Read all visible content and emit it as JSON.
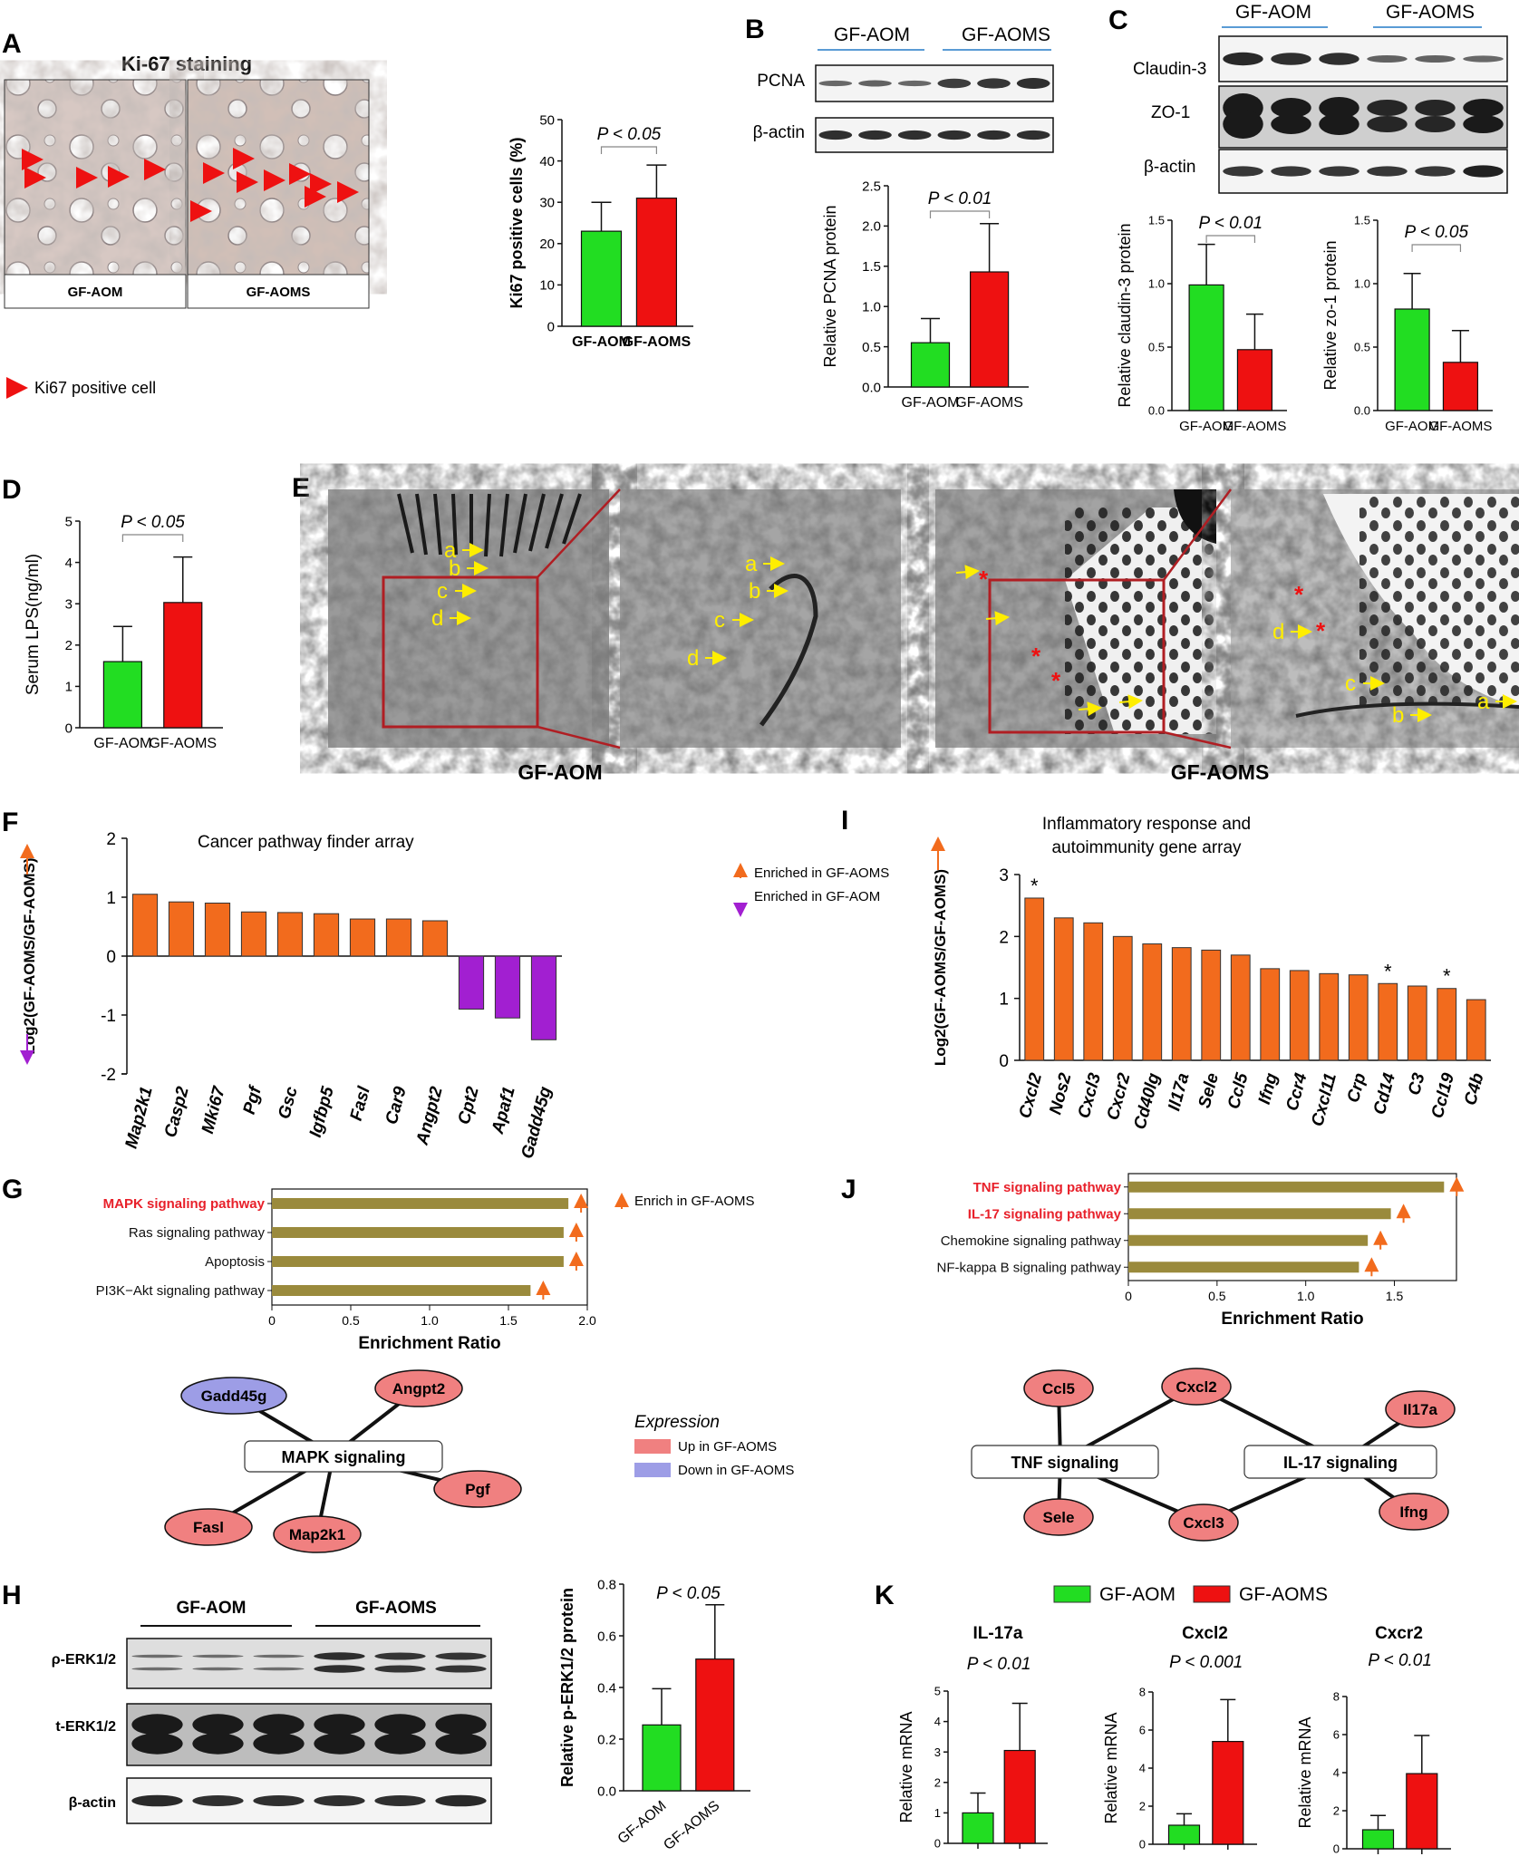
{
  "colors": {
    "green": "#22dd22",
    "red": "#ee1111",
    "orange": "#f26b1d",
    "purple": "#a21fd1",
    "olive": "#9a8a3c",
    "pathway_red": "#e8202a",
    "node_red": "#f08080",
    "node_blue": "#9d9de6",
    "blue_line": "#5a9bd5"
  },
  "panels": {
    "A": {
      "label": "A",
      "title": "Ki-67 staining",
      "left_caption": "GF-AOM",
      "right_caption": "GF-AOMS",
      "legend": "Ki67 positive cell",
      "chart_data": {
        "type": "bar",
        "categories": [
          "GF-AOM",
          "GF-AOMS"
        ],
        "values": [
          23,
          31
        ],
        "errors": [
          7,
          8
        ],
        "ylabel": "Ki67 positive cells (%)",
        "ylim": [
          0,
          50
        ],
        "yticks": [
          "0",
          "10",
          "20",
          "30",
          "40",
          "50"
        ],
        "pvalue": "P < 0.05"
      }
    },
    "B": {
      "label": "B",
      "groups": [
        "GF-AOM",
        "GF-AOMS"
      ],
      "rows": [
        "PCNA",
        "β-actin"
      ],
      "chart_data": {
        "type": "bar",
        "categories": [
          "GF-AOM",
          "GF-AOMS"
        ],
        "values": [
          0.55,
          1.43
        ],
        "errors": [
          0.3,
          0.6
        ],
        "ylabel": "Relative PCNA protein",
        "ylim": [
          0,
          2.5
        ],
        "yticks": [
          "0.0",
          "0.5",
          "1.0",
          "1.5",
          "2.0",
          "2.5"
        ],
        "pvalue": "P < 0.01"
      }
    },
    "C": {
      "label": "C",
      "groups": [
        "GF-AOM",
        "GF-AOMS"
      ],
      "rows": [
        "Claudin-3",
        "ZO-1",
        "β-actin"
      ],
      "chart_data": [
        {
          "type": "bar",
          "categories": [
            "GF-AOM",
            "GF-AOMS"
          ],
          "values": [
            0.99,
            0.48
          ],
          "errors": [
            0.32,
            0.28
          ],
          "ylabel": "Relative claudin-3 protein",
          "ylim": [
            0,
            1.5
          ],
          "yticks": [
            "0.0",
            "0.5",
            "1.0",
            "1.5"
          ],
          "pvalue": "P < 0.01"
        },
        {
          "type": "bar",
          "categories": [
            "GF-AOM",
            "GF-AOMS"
          ],
          "values": [
            0.8,
            0.38
          ],
          "errors": [
            0.28,
            0.25
          ],
          "ylabel": "Relative zo-1 protein",
          "ylim": [
            0,
            1.5
          ],
          "yticks": [
            "0.0",
            "0.5",
            "1.0",
            "1.5"
          ],
          "pvalue": "P < 0.05"
        }
      ]
    },
    "D": {
      "label": "D",
      "chart_data": {
        "type": "bar",
        "categories": [
          "GF-AOM",
          "GF-AOMS"
        ],
        "values": [
          1.6,
          3.03
        ],
        "errors": [
          0.85,
          1.1
        ],
        "ylabel": "Serum LPS(ng/ml)",
        "ylim": [
          0,
          5
        ],
        "yticks": [
          "0",
          "1",
          "2",
          "3",
          "4",
          "5"
        ],
        "pvalue": "P < 0.05"
      }
    },
    "E": {
      "label": "E",
      "captions": [
        "GF-AOM",
        "GF-AOMS"
      ],
      "arrow_letters": [
        "a",
        "b",
        "c",
        "d"
      ]
    },
    "F": {
      "label": "F",
      "title": "Cancer pathway finder array",
      "legend_up": "Enriched in GF-AOMS",
      "legend_down": "Enriched in GF-AOM",
      "chart_data": {
        "type": "bar",
        "categories": [
          "Map2k1",
          "Casp2",
          "Mki67",
          "Pgf",
          "Gsc",
          "Igfbp5",
          "Fasl",
          "Car9",
          "Angpt2",
          "Cpt2",
          "Apaf1",
          "Gadd45g"
        ],
        "values": [
          1.05,
          0.92,
          0.9,
          0.75,
          0.74,
          0.72,
          0.63,
          0.63,
          0.6,
          -0.9,
          -1.05,
          -1.42
        ],
        "ylabel": "Log2(GF-AOMS/GF-AOMS)",
        "ylim": [
          -2,
          2
        ],
        "yticks": [
          "2",
          "1",
          "0",
          "-1",
          "-2"
        ]
      }
    },
    "I": {
      "label": "I",
      "title_line1": "Inflammatory response and",
      "title_line2": "autoimmunity gene array",
      "star": "*",
      "chart_data": {
        "type": "bar",
        "categories": [
          "Cxcl2",
          "Nos2",
          "Cxcl3",
          "Cxcr2",
          "Cd40lg",
          "Il17a",
          "Sele",
          "Ccl5",
          "Ifng",
          "Ccr4",
          "Cxcl11",
          "Crp",
          "Cd14",
          "C3",
          "Ccl19",
          "C4b"
        ],
        "values": [
          2.62,
          2.3,
          2.22,
          2.0,
          1.88,
          1.82,
          1.78,
          1.7,
          1.48,
          1.45,
          1.4,
          1.38,
          1.24,
          1.2,
          1.16,
          0.98
        ],
        "starred": [
          true,
          false,
          false,
          false,
          false,
          false,
          false,
          false,
          false,
          false,
          false,
          false,
          true,
          false,
          true,
          false
        ],
        "ylabel": "Log2(GF-AOMS/GF-AOMS)",
        "ylim": [
          0,
          3
        ],
        "yticks": [
          "3",
          "2",
          "1",
          "0"
        ]
      }
    },
    "G": {
      "label": "G",
      "legend": "Enrich in GF-AOMS",
      "chart_data": {
        "type": "bar",
        "categories": [
          "MAPK signaling pathway",
          "Ras signaling pathway",
          "Apoptosis",
          "PI3K−Akt signaling pathway"
        ],
        "values": [
          1.88,
          1.85,
          1.85,
          1.64
        ],
        "highlight": [
          true,
          false,
          false,
          false
        ],
        "xlabel": "Enrichment Ratio",
        "xlim": [
          0,
          2
        ],
        "xticks": [
          "0",
          "0.5",
          "1.0",
          "1.5",
          "2.0"
        ]
      },
      "network": {
        "center": "MAPK signaling",
        "nodes": [
          "Gadd45g",
          "Angpt2",
          "Fasl",
          "Pgf",
          "Map2k1"
        ],
        "expression_title": "Expression",
        "expression_up": "Up in GF-AOMS",
        "expression_down": "Down in GF-AOMS"
      }
    },
    "J": {
      "label": "J",
      "chart_data": {
        "type": "bar",
        "categories": [
          "TNF signaling pathway",
          "IL-17 signaling pathway",
          "Chemokine signaling pathway",
          "NF-kappa B signaling pathway"
        ],
        "values": [
          1.78,
          1.48,
          1.35,
          1.3
        ],
        "highlight": [
          true,
          true,
          false,
          false
        ],
        "xlabel": "Enrichment Ratio",
        "xlim": [
          0,
          1.85
        ],
        "xticks": [
          "0",
          "0.5",
          "1.0",
          "1.5"
        ]
      },
      "network": {
        "hubs": [
          "TNF signaling",
          "IL-17 signaling"
        ],
        "nodes": [
          "Ccl5",
          "Cxcl2",
          "Il17a",
          "Sele",
          "Cxcl3",
          "Ifng"
        ]
      }
    },
    "H": {
      "label": "H",
      "groups": [
        "GF-AOM",
        "GF-AOMS"
      ],
      "rows": [
        "ρ-ERK1/2",
        "t-ERK1/2",
        "β-actin"
      ],
      "chart_data": {
        "type": "bar",
        "categories": [
          "GF-AOM",
          "GF-AOMS"
        ],
        "values": [
          0.255,
          0.51
        ],
        "errors": [
          0.14,
          0.21
        ],
        "ylabel": "Relative p-ERK1/2 protein",
        "ylim": [
          0,
          0.8
        ],
        "yticks": [
          "0.0",
          "0.2",
          "0.4",
          "0.6",
          "0.8"
        ],
        "pvalue": "P < 0.05"
      }
    },
    "K": {
      "label": "K",
      "legend": [
        "GF-AOM",
        "GF-AOMS"
      ],
      "chart_data": [
        {
          "type": "bar",
          "title": "IL-17a",
          "categories": [
            "GF-AOM",
            "GF-AOMS"
          ],
          "values": [
            1.0,
            3.05
          ],
          "errors": [
            0.65,
            1.55
          ],
          "ylabel": "Relative mRNA",
          "ylim": [
            0,
            5
          ],
          "yticks": [
            "0",
            "1",
            "2",
            "3",
            "4",
            "5"
          ],
          "pvalue": "P < 0.01"
        },
        {
          "type": "bar",
          "title": "Cxcl2",
          "categories": [
            "GF-AOM",
            "GF-AOMS"
          ],
          "values": [
            1.0,
            5.4
          ],
          "errors": [
            0.6,
            2.2
          ],
          "ylabel": "Relative mRNA",
          "ylim": [
            0,
            8
          ],
          "yticks": [
            "0",
            "2",
            "4",
            "6",
            "8"
          ],
          "pvalue": "P < 0.001"
        },
        {
          "type": "bar",
          "title": "Cxcr2",
          "categories": [
            "GF-AOM",
            "GF-AOMS"
          ],
          "values": [
            1.0,
            3.95
          ],
          "errors": [
            0.75,
            2.0
          ],
          "ylabel": "Relative mRNA",
          "ylim": [
            0,
            8
          ],
          "yticks": [
            "0",
            "2",
            "4",
            "6",
            "8"
          ],
          "pvalue": "P < 0.01"
        }
      ]
    }
  }
}
